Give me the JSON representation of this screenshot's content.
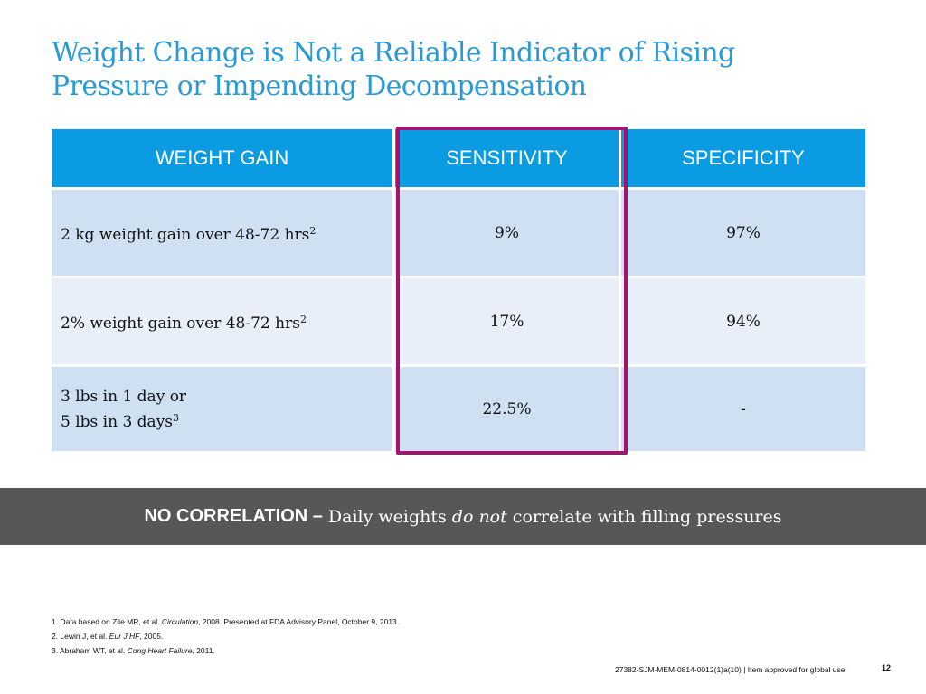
{
  "slide": {
    "title_line1": "Weight Change is Not a Reliable Indicator of Rising",
    "title_line2": "Pressure or Impending Decompensation",
    "accent_color": "#2a9ad6",
    "highlight_color": "#a4146e"
  },
  "table": {
    "headers": [
      "WEIGHT GAIN",
      "SENSITIVITY",
      "SPECIFICITY"
    ],
    "rows": [
      {
        "label_lines": [
          "2 kg weight gain over 48-72 hrs"
        ],
        "ref": "2",
        "sensitivity": "9%",
        "specificity": "97%"
      },
      {
        "label_lines": [
          "2% weight gain over 48-72 hrs"
        ],
        "ref": "2",
        "sensitivity": "17%",
        "specificity": "94%"
      },
      {
        "label_lines": [
          "3 lbs in 1 day or",
          "5 lbs in 3 days"
        ],
        "ref": "3",
        "sensitivity": "22.5%",
        "specificity": "-"
      }
    ]
  },
  "banner": {
    "lead": "NO CORRELATION –",
    "text_before": "Daily weights",
    "emphasis": "do not",
    "text_after": "correlate with filling pressures"
  },
  "references": [
    {
      "prefix": "1. Data based on Zile MR, et al.",
      "journal": "Circulation",
      "suffix": ", 2008. Presented at FDA Advisory Panel, October 9, 2013."
    },
    {
      "prefix": "2. Lewin J, et al.",
      "journal": "Eur J HF",
      "suffix": ", 2005."
    },
    {
      "prefix": "3. Abraham WT, et al.",
      "journal": "Cong Heart Failure",
      "suffix": ", 2011."
    }
  ],
  "footer": {
    "code": "27382-SJM-MEM-0814-0012(1)a(10) | Item approved for global use.",
    "page_number": "12"
  }
}
